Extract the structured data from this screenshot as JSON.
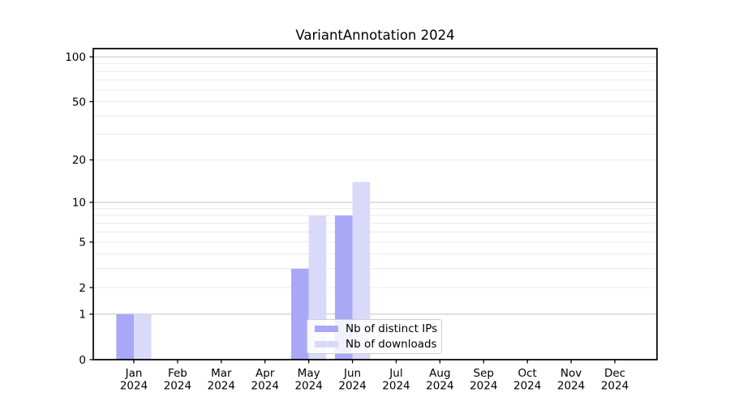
{
  "chart_data": {
    "type": "bar",
    "title": "VariantAnnotation 2024",
    "categories": [
      "Jan 2024",
      "Feb 2024",
      "Mar 2024",
      "Apr 2024",
      "May 2024",
      "Jun 2024",
      "Jul 2024",
      "Aug 2024",
      "Sep 2024",
      "Oct 2024",
      "Nov 2024",
      "Dec 2024"
    ],
    "series": [
      {
        "name": "Nb of distinct IPs",
        "color": "#a8a8f6",
        "values": [
          1,
          0,
          0,
          0,
          3,
          8,
          0,
          0,
          0,
          0,
          0,
          0
        ]
      },
      {
        "name": "Nb of downloads",
        "color": "#d9d9f9",
        "values": [
          1,
          0,
          0,
          0,
          8,
          14,
          0,
          0,
          0,
          0,
          0,
          0
        ]
      }
    ],
    "xlabel": "",
    "ylabel": "",
    "y_axis": {
      "scale": "log1p",
      "tick_labels": [
        0,
        1,
        2,
        5,
        10,
        20,
        50,
        100
      ],
      "minor_gridlines": [
        2,
        3,
        4,
        5,
        6,
        7,
        8,
        9,
        20,
        30,
        40,
        50,
        60,
        70,
        80,
        90
      ],
      "major_gridlines": [
        1,
        10,
        100
      ],
      "ylim": [
        0,
        114
      ]
    },
    "grid": true,
    "legend": {
      "position": "lower-center",
      "entries": [
        "Nb of distinct IPs",
        "Nb of downloads"
      ]
    }
  },
  "colors": {
    "minor_grid": "#ebebeb",
    "major_grid": "#c9c9c9",
    "spine": "#000000",
    "bar_distinct_ips": "#a8a8f6",
    "bar_downloads": "#d9d9f9",
    "legend_border": "#cfcfcf"
  }
}
